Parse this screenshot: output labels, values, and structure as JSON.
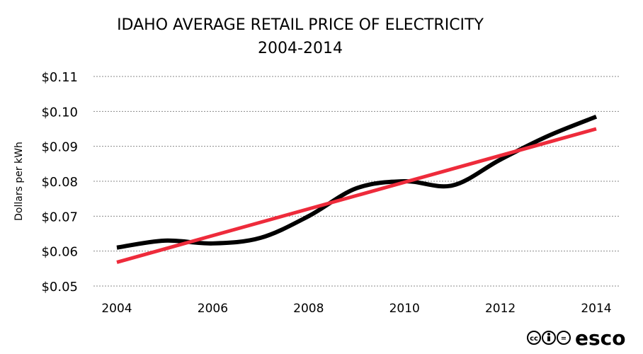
{
  "chart_data": {
    "type": "line",
    "title_line1": "IDAHO AVERAGE RETAIL PRICE OF ELECTRICITY",
    "title_line2": "2004-2014",
    "xlabel": "",
    "ylabel": "Dollars per kWh",
    "x": [
      2004,
      2005,
      2006,
      2007,
      2008,
      2009,
      2010,
      2011,
      2012,
      2013,
      2014
    ],
    "xticks": [
      2004,
      2006,
      2008,
      2010,
      2012,
      2014
    ],
    "xtick_labels": [
      "2004",
      "2006",
      "2008",
      "2010",
      "2012",
      "2014"
    ],
    "xlim": [
      2004,
      2014
    ],
    "ylim": [
      0.05,
      0.11
    ],
    "yticks": [
      0.05,
      0.06,
      0.07,
      0.08,
      0.09,
      0.1,
      0.11
    ],
    "ytick_labels": [
      "$0.05",
      "$0.06",
      "$0.07",
      "$0.08",
      "$0.09",
      "$0.10",
      "$0.11"
    ],
    "grid": "horizontal dashed",
    "series": [
      {
        "values": [
          0.061,
          0.063,
          0.0622,
          0.0638,
          0.07,
          0.078,
          0.08,
          0.0788,
          0.0862,
          0.093,
          0.0985
        ],
        "color": "#000000"
      },
      {
        "values": [
          0.0568,
          0.095
        ],
        "x": [
          2004,
          2014
        ],
        "color": "#ee2b3b"
      }
    ]
  },
  "credit": {
    "license_glyphs": [
      "cc",
      "by",
      "="
    ],
    "brand": "esco"
  }
}
